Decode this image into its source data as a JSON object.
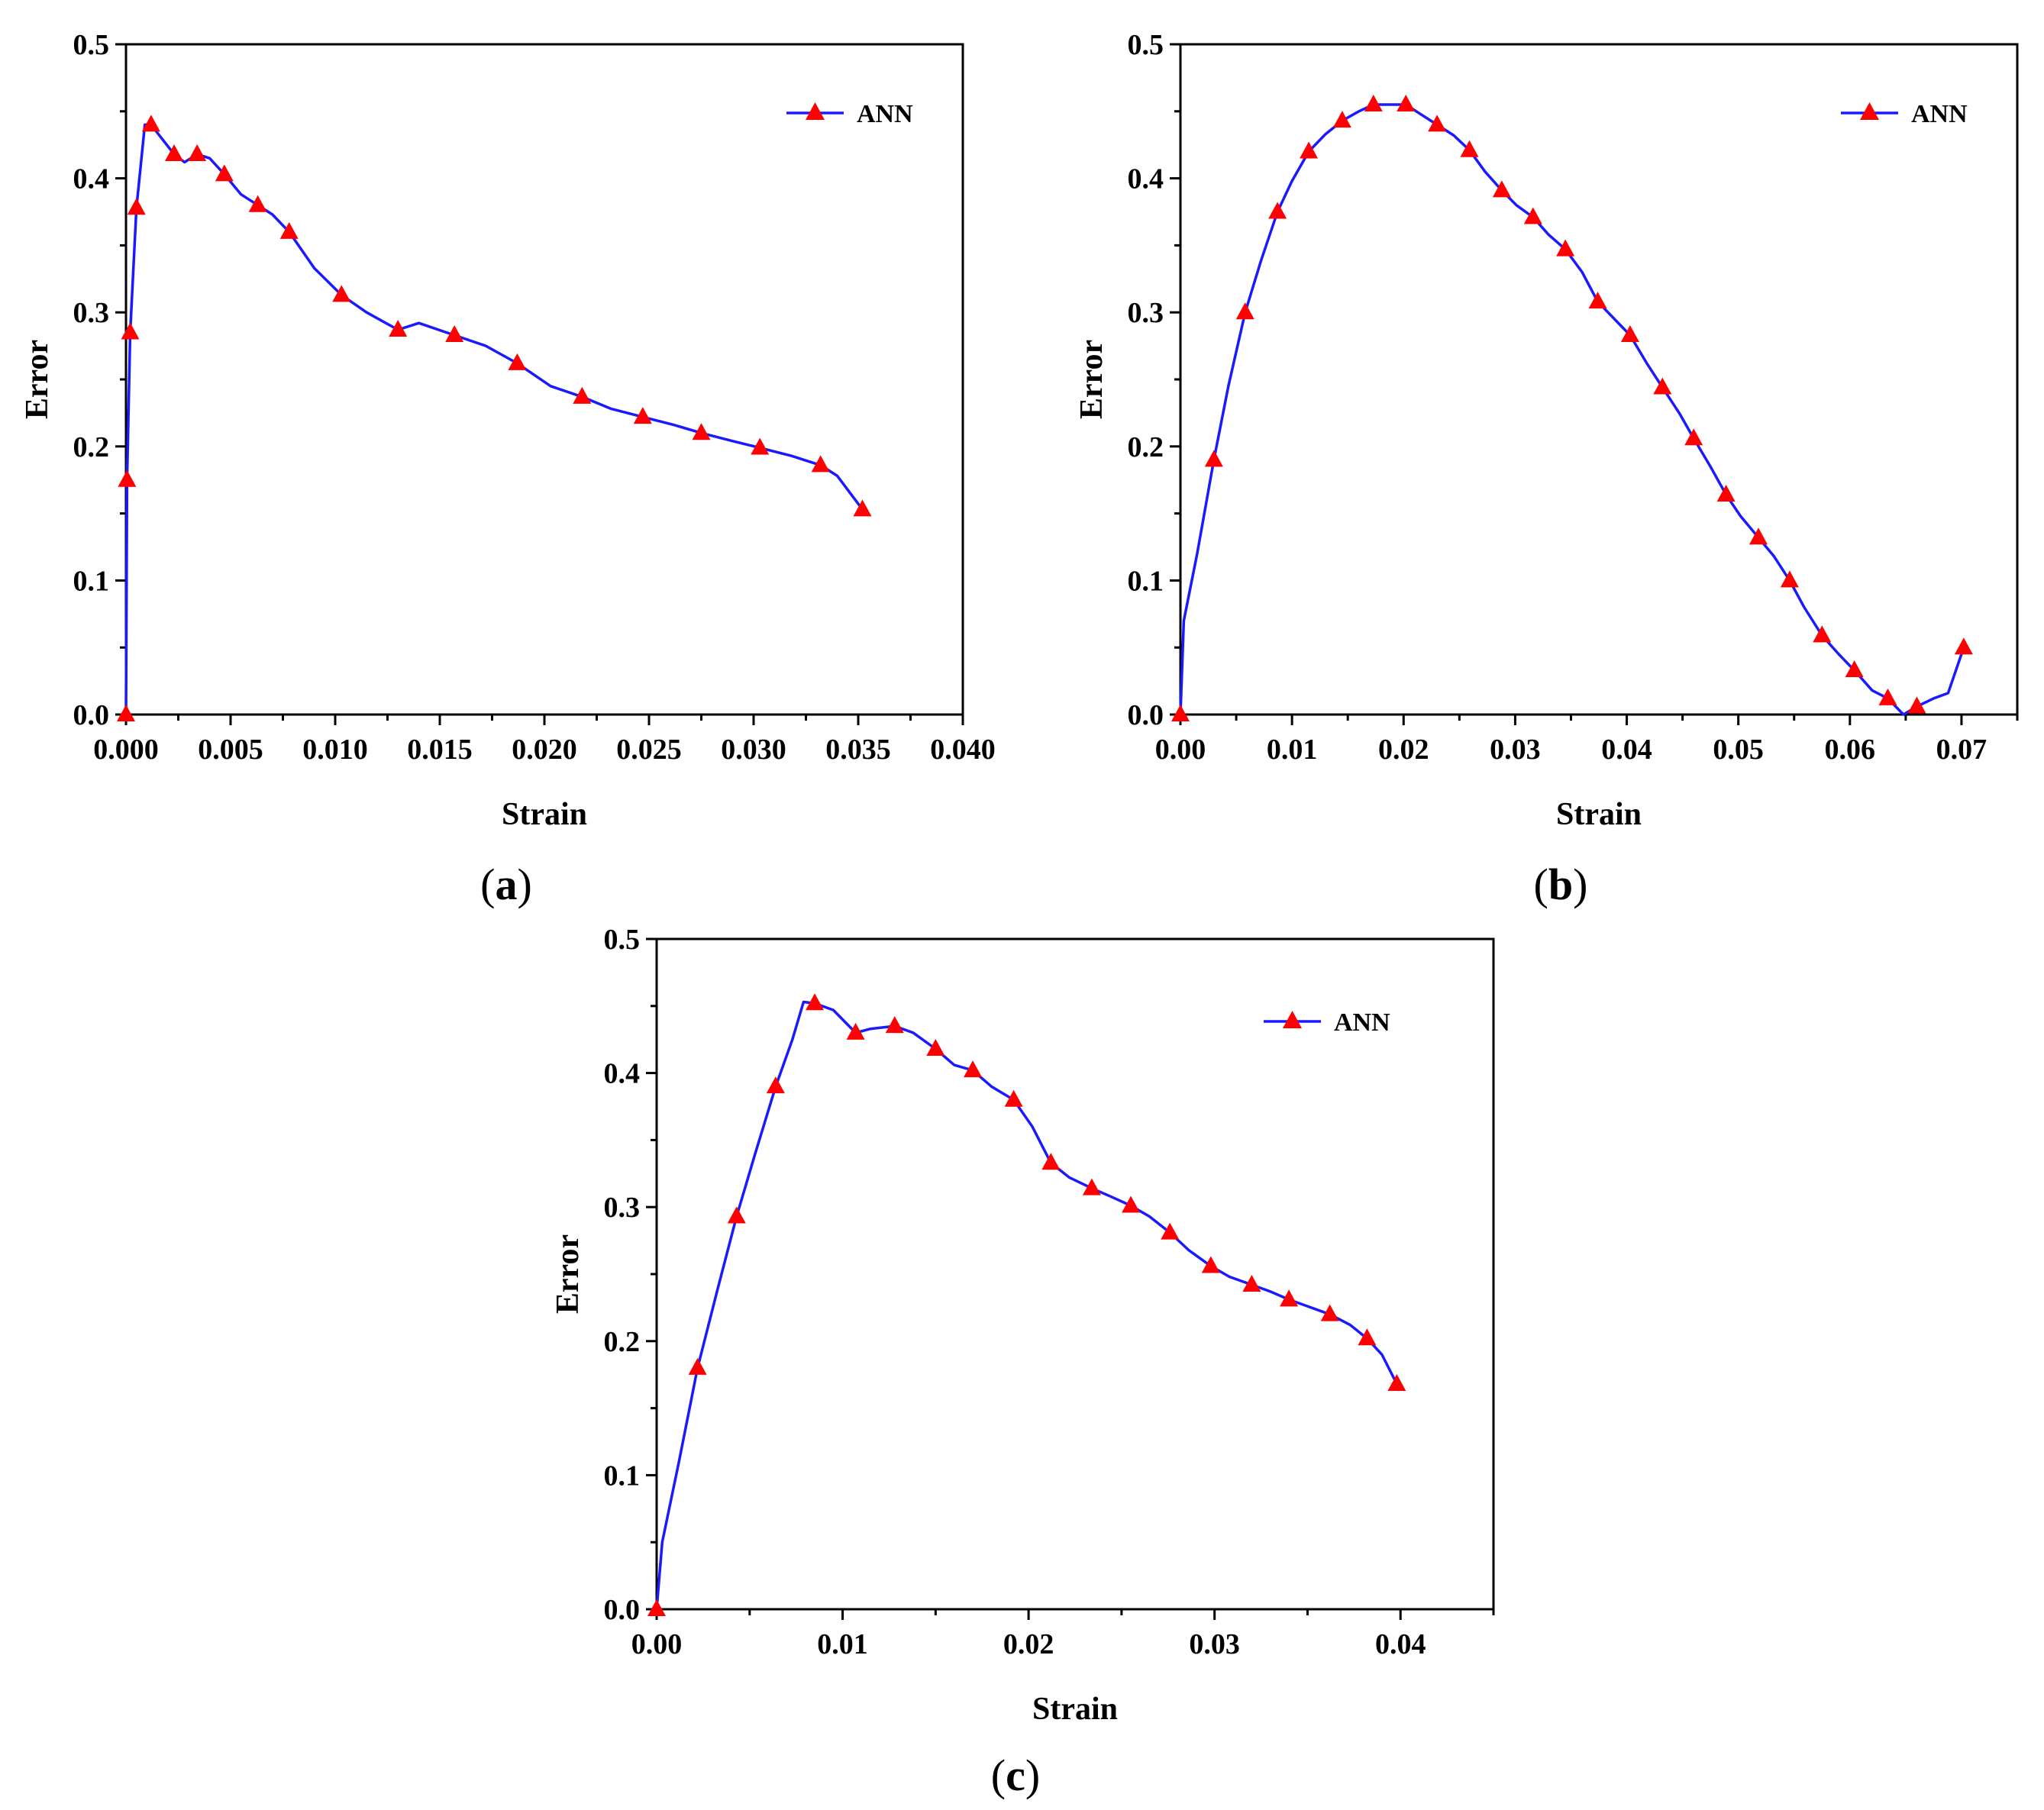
{
  "colors": {
    "line": "#1a1aff",
    "marker": "#ff0000",
    "axis": "#000000"
  },
  "chart_data": [
    {
      "panel_label": "a",
      "type": "line",
      "title": "",
      "xlabel": "Strain",
      "ylabel": "Error",
      "xlim": [
        0,
        0.04
      ],
      "ylim": [
        0,
        0.5
      ],
      "xticks": [
        0.0,
        0.005,
        0.01,
        0.015,
        0.02,
        0.025,
        0.03,
        0.035,
        0.04
      ],
      "xtick_labels": [
        "0.000",
        "0.005",
        "0.010",
        "0.015",
        "0.020",
        "0.025",
        "0.030",
        "0.035",
        "0.040"
      ],
      "yticks": [
        0.0,
        0.1,
        0.2,
        0.3,
        0.4,
        0.5
      ],
      "ytick_labels": [
        "0.0",
        "0.1",
        "0.2",
        "0.3",
        "0.4",
        "0.5"
      ],
      "legend_position": "top-right",
      "series": [
        {
          "name": "ANN",
          "line": [
            [
              0,
              0
            ],
            [
              5e-05,
              0.175
            ],
            [
              0.0002,
              0.285
            ],
            [
              0.0005,
              0.378
            ],
            [
              0.0009,
              0.44
            ],
            [
              0.0012,
              0.44
            ],
            [
              0.0016,
              0.432
            ],
            [
              0.0023,
              0.418
            ],
            [
              0.0028,
              0.412
            ],
            [
              0.0034,
              0.418
            ],
            [
              0.004,
              0.415
            ],
            [
              0.0047,
              0.403
            ],
            [
              0.0055,
              0.388
            ],
            [
              0.0063,
              0.38
            ],
            [
              0.007,
              0.373
            ],
            [
              0.0078,
              0.36
            ],
            [
              0.009,
              0.333
            ],
            [
              0.0103,
              0.313
            ],
            [
              0.0115,
              0.3
            ],
            [
              0.013,
              0.287
            ],
            [
              0.014,
              0.292
            ],
            [
              0.0157,
              0.283
            ],
            [
              0.0172,
              0.275
            ],
            [
              0.0187,
              0.262
            ],
            [
              0.0203,
              0.245
            ],
            [
              0.0218,
              0.237
            ],
            [
              0.0232,
              0.228
            ],
            [
              0.0247,
              0.222
            ],
            [
              0.0262,
              0.216
            ],
            [
              0.0275,
              0.21
            ],
            [
              0.029,
              0.204
            ],
            [
              0.0303,
              0.199
            ],
            [
              0.0318,
              0.193
            ],
            [
              0.0332,
              0.186
            ],
            [
              0.034,
              0.178
            ],
            [
              0.0352,
              0.153
            ]
          ],
          "markers": [
            [
              0,
              0
            ],
            [
              5e-05,
              0.175
            ],
            [
              0.0002,
              0.285
            ],
            [
              0.0005,
              0.378
            ],
            [
              0.0012,
              0.44
            ],
            [
              0.0023,
              0.418
            ],
            [
              0.0034,
              0.418
            ],
            [
              0.0047,
              0.403
            ],
            [
              0.0063,
              0.38
            ],
            [
              0.0078,
              0.36
            ],
            [
              0.0103,
              0.313
            ],
            [
              0.013,
              0.287
            ],
            [
              0.0157,
              0.283
            ],
            [
              0.0187,
              0.262
            ],
            [
              0.0218,
              0.237
            ],
            [
              0.0247,
              0.222
            ],
            [
              0.0275,
              0.21
            ],
            [
              0.0303,
              0.199
            ],
            [
              0.0332,
              0.186
            ],
            [
              0.0352,
              0.153
            ]
          ]
        }
      ]
    },
    {
      "panel_label": "b",
      "type": "line",
      "title": "",
      "xlabel": "Strain",
      "ylabel": "Error",
      "xlim": [
        0,
        0.075
      ],
      "ylim": [
        0,
        0.5
      ],
      "xticks": [
        0.0,
        0.01,
        0.02,
        0.03,
        0.04,
        0.05,
        0.06,
        0.07
      ],
      "xtick_labels": [
        "0.00",
        "0.01",
        "0.02",
        "0.03",
        "0.04",
        "0.05",
        "0.06",
        "0.07"
      ],
      "yticks": [
        0.0,
        0.1,
        0.2,
        0.3,
        0.4,
        0.5
      ],
      "ytick_labels": [
        "0.0",
        "0.1",
        "0.2",
        "0.3",
        "0.4",
        "0.5"
      ],
      "legend_position": "top-right",
      "series": [
        {
          "name": "ANN",
          "line": [
            [
              0,
              0
            ],
            [
              0.0003,
              0.07
            ],
            [
              0.0015,
              0.12
            ],
            [
              0.003,
              0.19
            ],
            [
              0.0043,
              0.245
            ],
            [
              0.0058,
              0.3
            ],
            [
              0.0072,
              0.338
            ],
            [
              0.0087,
              0.375
            ],
            [
              0.01,
              0.398
            ],
            [
              0.0115,
              0.42
            ],
            [
              0.013,
              0.433
            ],
            [
              0.0145,
              0.443
            ],
            [
              0.016,
              0.45
            ],
            [
              0.0173,
              0.455
            ],
            [
              0.0188,
              0.455
            ],
            [
              0.0202,
              0.455
            ],
            [
              0.0215,
              0.448
            ],
            [
              0.023,
              0.44
            ],
            [
              0.0245,
              0.432
            ],
            [
              0.0259,
              0.421
            ],
            [
              0.0273,
              0.405
            ],
            [
              0.0288,
              0.391
            ],
            [
              0.0301,
              0.38
            ],
            [
              0.0316,
              0.371
            ],
            [
              0.033,
              0.358
            ],
            [
              0.0345,
              0.347
            ],
            [
              0.036,
              0.33
            ],
            [
              0.0374,
              0.308
            ],
            [
              0.0389,
              0.295
            ],
            [
              0.0403,
              0.283
            ],
            [
              0.0418,
              0.262
            ],
            [
              0.0432,
              0.244
            ],
            [
              0.0447,
              0.225
            ],
            [
              0.046,
              0.206
            ],
            [
              0.0475,
              0.185
            ],
            [
              0.0489,
              0.164
            ],
            [
              0.0502,
              0.148
            ],
            [
              0.0518,
              0.132
            ],
            [
              0.0532,
              0.118
            ],
            [
              0.0546,
              0.1
            ],
            [
              0.0559,
              0.08
            ],
            [
              0.0575,
              0.059
            ],
            [
              0.059,
              0.045
            ],
            [
              0.0604,
              0.033
            ],
            [
              0.062,
              0.018
            ],
            [
              0.0634,
              0.012
            ],
            [
              0.0648,
              0.0
            ],
            [
              0.066,
              0.006
            ],
            [
              0.0675,
              0.012
            ],
            [
              0.0688,
              0.016
            ],
            [
              0.0702,
              0.05
            ]
          ],
          "markers": [
            [
              0,
              0
            ],
            [
              0.003,
              0.19
            ],
            [
              0.0058,
              0.3
            ],
            [
              0.0087,
              0.375
            ],
            [
              0.0115,
              0.42
            ],
            [
              0.0145,
              0.443
            ],
            [
              0.0173,
              0.455
            ],
            [
              0.0202,
              0.455
            ],
            [
              0.023,
              0.44
            ],
            [
              0.0259,
              0.421
            ],
            [
              0.0288,
              0.391
            ],
            [
              0.0316,
              0.371
            ],
            [
              0.0345,
              0.347
            ],
            [
              0.0374,
              0.308
            ],
            [
              0.0403,
              0.283
            ],
            [
              0.0432,
              0.244
            ],
            [
              0.046,
              0.206
            ],
            [
              0.0489,
              0.164
            ],
            [
              0.0518,
              0.132
            ],
            [
              0.0546,
              0.1
            ],
            [
              0.0575,
              0.059
            ],
            [
              0.0604,
              0.033
            ],
            [
              0.0634,
              0.012
            ],
            [
              0.066,
              0.006
            ],
            [
              0.0702,
              0.05
            ]
          ]
        }
      ]
    },
    {
      "panel_label": "c",
      "type": "line",
      "title": "",
      "xlabel": "Strain",
      "ylabel": "Error",
      "xlim": [
        0,
        0.045
      ],
      "ylim": [
        0,
        0.5
      ],
      "xticks": [
        0.0,
        0.01,
        0.02,
        0.03,
        0.04
      ],
      "xtick_labels": [
        "0.00",
        "0.01",
        "0.02",
        "0.03",
        "0.04"
      ],
      "yticks": [
        0.0,
        0.1,
        0.2,
        0.3,
        0.4,
        0.5
      ],
      "ytick_labels": [
        "0.0",
        "0.1",
        "0.2",
        "0.3",
        "0.4",
        "0.5"
      ],
      "legend_position": "top-right",
      "series": [
        {
          "name": "ANN",
          "line": [
            [
              0,
              0
            ],
            [
              0.0003,
              0.05
            ],
            [
              0.0012,
              0.11
            ],
            [
              0.0022,
              0.18
            ],
            [
              0.0033,
              0.24
            ],
            [
              0.0043,
              0.293
            ],
            [
              0.0053,
              0.34
            ],
            [
              0.0064,
              0.39
            ],
            [
              0.0073,
              0.425
            ],
            [
              0.0079,
              0.453
            ],
            [
              0.0085,
              0.452
            ],
            [
              0.0095,
              0.447
            ],
            [
              0.0107,
              0.43
            ],
            [
              0.0115,
              0.433
            ],
            [
              0.0128,
              0.435
            ],
            [
              0.0138,
              0.43
            ],
            [
              0.015,
              0.418
            ],
            [
              0.016,
              0.406
            ],
            [
              0.017,
              0.402
            ],
            [
              0.018,
              0.39
            ],
            [
              0.0192,
              0.38
            ],
            [
              0.0202,
              0.36
            ],
            [
              0.0212,
              0.333
            ],
            [
              0.0222,
              0.322
            ],
            [
              0.0234,
              0.314
            ],
            [
              0.0244,
              0.308
            ],
            [
              0.0255,
              0.301
            ],
            [
              0.0265,
              0.293
            ],
            [
              0.0276,
              0.281
            ],
            [
              0.0286,
              0.268
            ],
            [
              0.0298,
              0.256
            ],
            [
              0.0308,
              0.248
            ],
            [
              0.032,
              0.242
            ],
            [
              0.033,
              0.237
            ],
            [
              0.034,
              0.231
            ],
            [
              0.035,
              0.226
            ],
            [
              0.0362,
              0.22
            ],
            [
              0.0373,
              0.212
            ],
            [
              0.0382,
              0.202
            ],
            [
              0.039,
              0.19
            ],
            [
              0.0398,
              0.168
            ]
          ],
          "markers": [
            [
              0,
              0
            ],
            [
              0.0022,
              0.18
            ],
            [
              0.0043,
              0.293
            ],
            [
              0.0064,
              0.39
            ],
            [
              0.0085,
              0.452
            ],
            [
              0.0107,
              0.43
            ],
            [
              0.0128,
              0.435
            ],
            [
              0.015,
              0.418
            ],
            [
              0.017,
              0.402
            ],
            [
              0.0192,
              0.38
            ],
            [
              0.0212,
              0.333
            ],
            [
              0.0234,
              0.314
            ],
            [
              0.0255,
              0.301
            ],
            [
              0.0276,
              0.281
            ],
            [
              0.0298,
              0.256
            ],
            [
              0.032,
              0.242
            ],
            [
              0.034,
              0.231
            ],
            [
              0.0362,
              0.22
            ],
            [
              0.0382,
              0.202
            ],
            [
              0.0398,
              0.168
            ]
          ]
        }
      ]
    }
  ]
}
